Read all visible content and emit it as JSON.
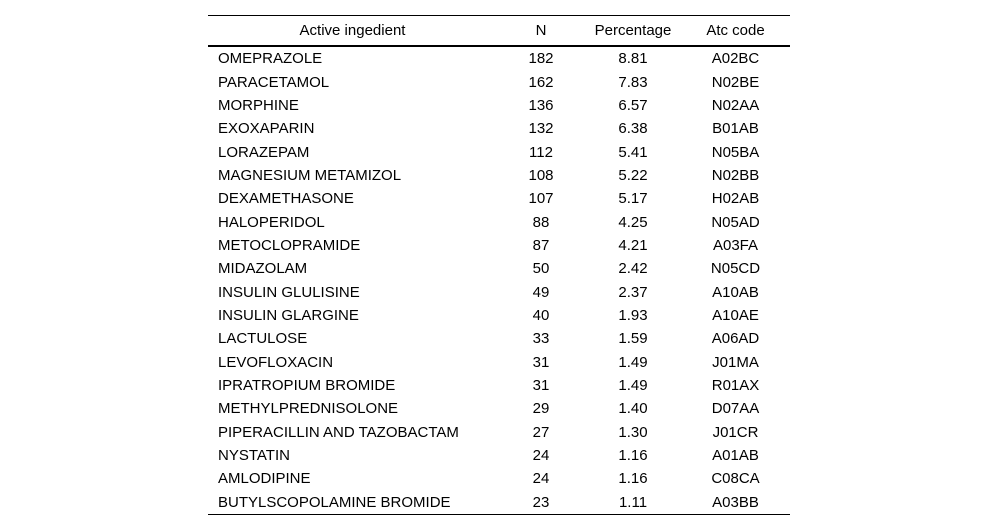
{
  "colors": {
    "background": "#ffffff",
    "text": "#000000",
    "rule": "#000000"
  },
  "chart_data": {
    "type": "table",
    "columns": [
      "Active ingedient",
      "N",
      "Percentage",
      "Atc code"
    ],
    "rows": [
      [
        "OMEPRAZOLE",
        "182",
        "8.81",
        "A02BC"
      ],
      [
        "PARACETAMOL",
        "162",
        "7.83",
        "N02BE"
      ],
      [
        "MORPHINE",
        "136",
        "6.57",
        "N02AA"
      ],
      [
        "EXOXAPARIN",
        "132",
        "6.38",
        "B01AB"
      ],
      [
        "LORAZEPAM",
        "112",
        "5.41",
        "N05BA"
      ],
      [
        "MAGNESIUM METAMIZOL",
        "108",
        "5.22",
        "N02BB"
      ],
      [
        "DEXAMETHASONE",
        "107",
        "5.17",
        "H02AB"
      ],
      [
        "HALOPERIDOL",
        "88",
        "4.25",
        "N05AD"
      ],
      [
        "METOCLOPRAMIDE",
        "87",
        "4.21",
        "A03FA"
      ],
      [
        "MIDAZOLAM",
        "50",
        "2.42",
        "N05CD"
      ],
      [
        "INSULIN GLULISINE",
        "49",
        "2.37",
        "A10AB"
      ],
      [
        "INSULIN GLARGINE",
        "40",
        "1.93",
        "A10AE"
      ],
      [
        "LACTULOSE",
        "33",
        "1.59",
        "A06AD"
      ],
      [
        "LEVOFLOXACIN",
        "31",
        "1.49",
        "J01MA"
      ],
      [
        "IPRATROPIUM BROMIDE",
        "31",
        "1.49",
        "R01AX"
      ],
      [
        "METHYLPREDNISOLONE",
        "29",
        "1.40",
        "D07AA"
      ],
      [
        "PIPERACILLIN AND TAZOBACTAM",
        "27",
        "1.30",
        "J01CR"
      ],
      [
        "NYSTATIN",
        "24",
        "1.16",
        "A01AB"
      ],
      [
        "AMLODIPINE",
        "24",
        "1.16",
        "C08CA"
      ],
      [
        "BUTYLSCOPOLAMINE BROMIDE",
        "23",
        "1.11",
        "A03BB"
      ]
    ]
  }
}
